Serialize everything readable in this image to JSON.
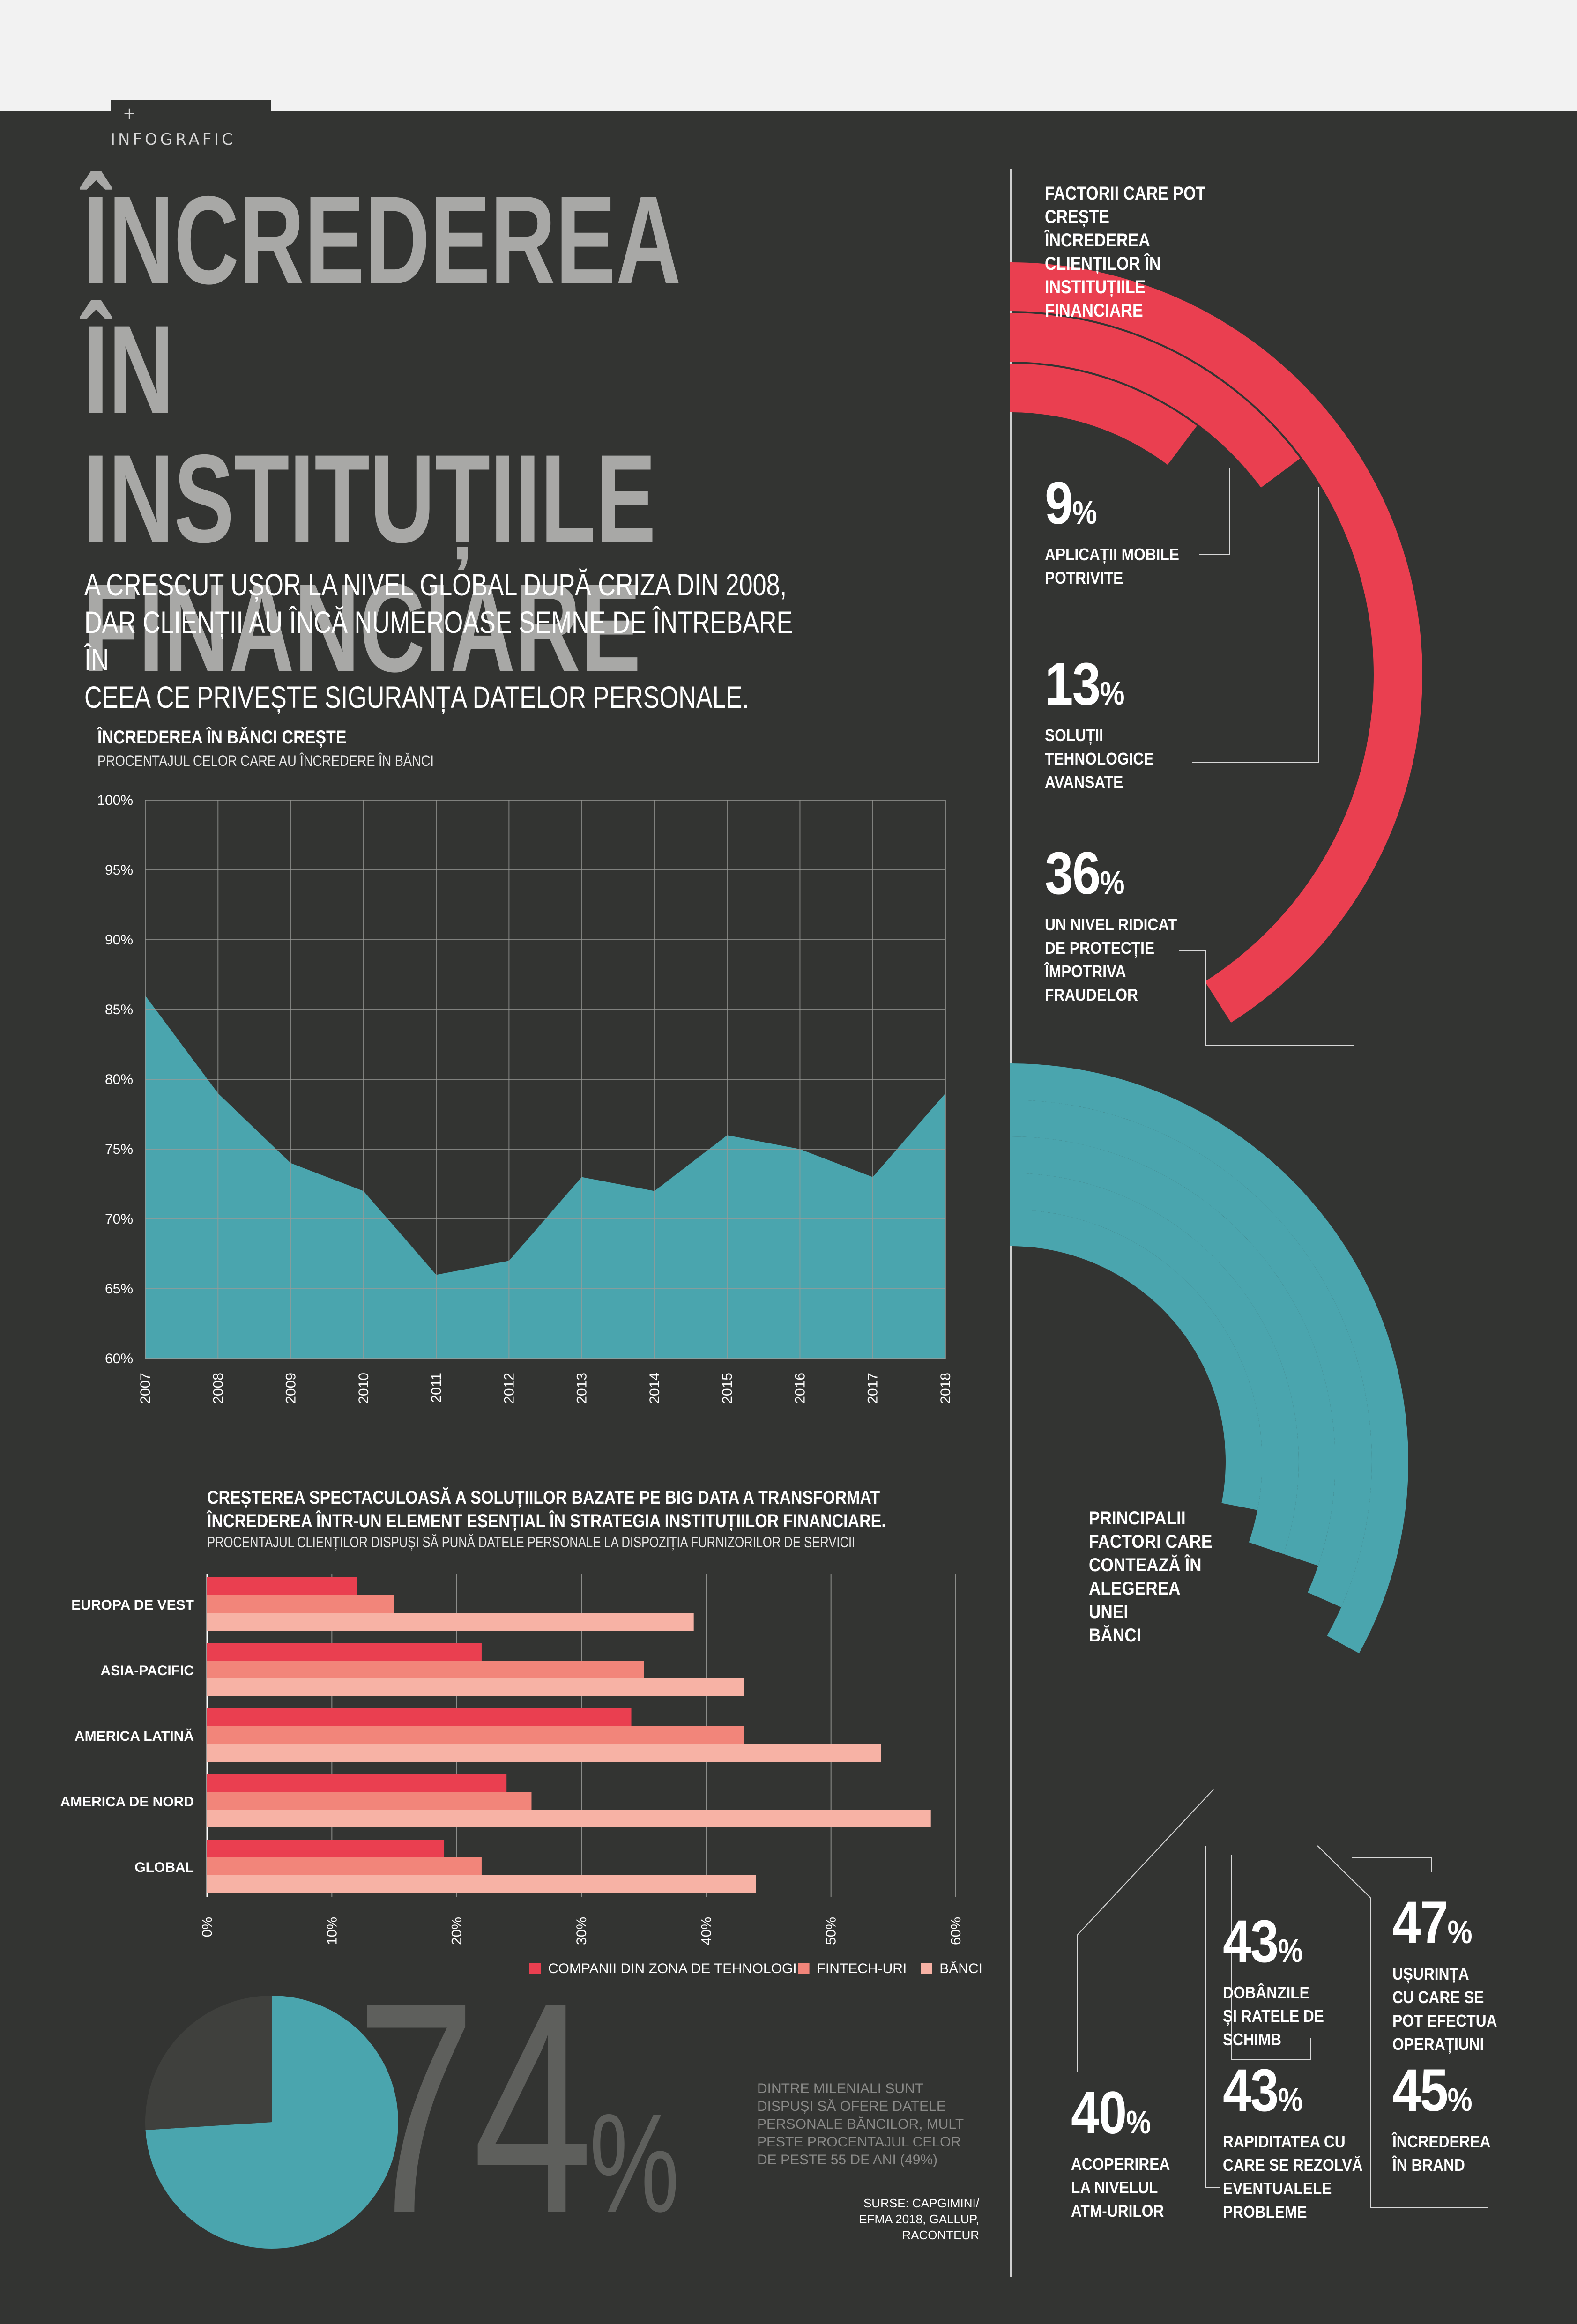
{
  "header": {
    "tag": "+ INFOGRAFIC"
  },
  "title": [
    "ÎNCREDEREA",
    "ÎN INSTITUȚIILE",
    "FINANCIARE"
  ],
  "subtitle": [
    "A CRESCUT UȘOR LA NIVEL GLOBAL DUPĂ CRIZA DIN 2008,",
    "DAR CLIENȚII AU ÎNCĂ NUMEROASE SEMNE DE ÎNTREBARE ÎN",
    "CEEA CE PRIVEȘTE SIGURANȚA DATELOR PERSONALE."
  ],
  "colors": {
    "background": "#333432",
    "teal": "#4aa5ae",
    "red": "#ea3f50",
    "salmon": "#f2857a",
    "pink": "#f7b2a5",
    "gray_text": "#a8a8a6"
  },
  "chart_data": [
    {
      "type": "area",
      "title": "ÎNCREDEREA ÎN BĂNCI CREȘTE",
      "subtitle": "PROCENTAJUL CELOR CARE AU ÎNCREDERE ÎN BĂNCI",
      "x": [
        "2007",
        "2008",
        "2009",
        "2010",
        "2011",
        "2012",
        "2013",
        "2014",
        "2015",
        "2016",
        "2017",
        "2018"
      ],
      "values": [
        86,
        79,
        74,
        72,
        66,
        67,
        73,
        72,
        76,
        75,
        73,
        79
      ],
      "ylim": [
        60,
        100
      ],
      "yticks": [
        "60%",
        "65%",
        "70%",
        "75%",
        "80%",
        "85%",
        "90%",
        "95%",
        "100%"
      ],
      "grid": true,
      "color": "#4aa5ae"
    },
    {
      "type": "bar",
      "orientation": "horizontal",
      "title": [
        "CREȘTEREA SPECTACULOASĂ A SOLUȚIILOR BAZATE PE BIG DATA A TRANSFORMAT",
        "ÎNCREDEREA ÎNTR-UN ELEMENT ESENȚIAL ÎN STRATEGIA INSTITUȚIILOR FINANCIARE."
      ],
      "subtitle": "PROCENTAJUL CLIENȚILOR DISPUȘI SĂ PUNĂ DATELE PERSONALE LA DISPOZIȚIA FURNIZORILOR DE SERVICII",
      "categories": [
        "EUROPA DE VEST",
        "ASIA-PACIFIC",
        "AMERICA LATINĂ",
        "AMERICA DE NORD",
        "GLOBAL"
      ],
      "series": [
        {
          "name": "COMPANII DIN ZONA DE TEHNOLOGIE",
          "color": "#ea3f50",
          "values": [
            12,
            22,
            34,
            24,
            19
          ]
        },
        {
          "name": "FINTECH-URI",
          "color": "#f2857a",
          "values": [
            15,
            35,
            43,
            26,
            22
          ]
        },
        {
          "name": "BĂNCI",
          "color": "#f7b2a5",
          "values": [
            39,
            43,
            54,
            58,
            44
          ]
        }
      ],
      "xlim": [
        0,
        60
      ],
      "xticks": [
        "0%",
        "10%",
        "20%",
        "30%",
        "40%",
        "50%",
        "60%"
      ],
      "legend": "bottom"
    },
    {
      "type": "pie",
      "values": [
        74,
        26
      ],
      "colors": [
        "#4aa5ae",
        "#3f403d"
      ]
    }
  ],
  "donut": {
    "big_value": "74",
    "big_unit": "%",
    "note": "DINTRE MILENIALI SUNT DISPUȘI SĂ OFERE DATELE PERSONALE BĂNCILOR, MULT PESTE PROCENTAJUL CELOR DE PESTE 55 DE ANI (49%)"
  },
  "source": "SURSE: CAPGIMINI/ EFMA 2018, GALLUP, RACONTEUR",
  "factors": {
    "title": [
      "FACTORII CARE POT CREȘTE",
      "ÎNCREDEREA CLIENȚILOR ÎN",
      "INSTITUȚIILE FINANCIARE"
    ],
    "items": [
      {
        "value": "9",
        "unit": "%",
        "label": [
          "APLICAȚII MOBILE",
          "POTRIVITE"
        ],
        "share": 9
      },
      {
        "value": "13",
        "unit": "%",
        "label": [
          "SOLUȚII",
          "TEHNOLOGICE",
          "AVANSATE"
        ],
        "share": 13
      },
      {
        "value": "36",
        "unit": "%",
        "label": [
          "UN NIVEL RIDICAT",
          "DE PROTECȚIE",
          "ÎMPOTRIVA",
          "FRAUDELOR"
        ],
        "share": 36
      }
    ]
  },
  "bank_factors": {
    "title": [
      "PRINCIPALII",
      "FACTORI CARE",
      "CONTEAZĂ ÎN",
      "ALEGEREA UNEI",
      "BĂNCI"
    ],
    "items": [
      {
        "value": "40",
        "unit": "%",
        "label": [
          "ACOPERIREA",
          "LA NIVELUL",
          "ATM-URILOR"
        ],
        "share": 40
      },
      {
        "value": "43",
        "unit": "%",
        "label": [
          "DOBÂNZILE",
          "ȘI RATELE DE",
          "SCHIMB"
        ],
        "share": 43
      },
      {
        "value": "43",
        "unit": "%",
        "label": [
          "RAPIDITATEA CU",
          "CARE SE REZOLVĂ",
          "EVENTUALELE",
          "PROBLEME"
        ],
        "share": 43
      },
      {
        "value": "45",
        "unit": "%",
        "label": [
          "ÎNCREDEREA",
          "ÎN BRAND"
        ],
        "share": 45
      },
      {
        "value": "47",
        "unit": "%",
        "label": [
          "UȘURINȚA",
          "CU CARE SE",
          "POT EFECTUA",
          "OPERAȚIUNI"
        ],
        "share": 47
      }
    ]
  }
}
